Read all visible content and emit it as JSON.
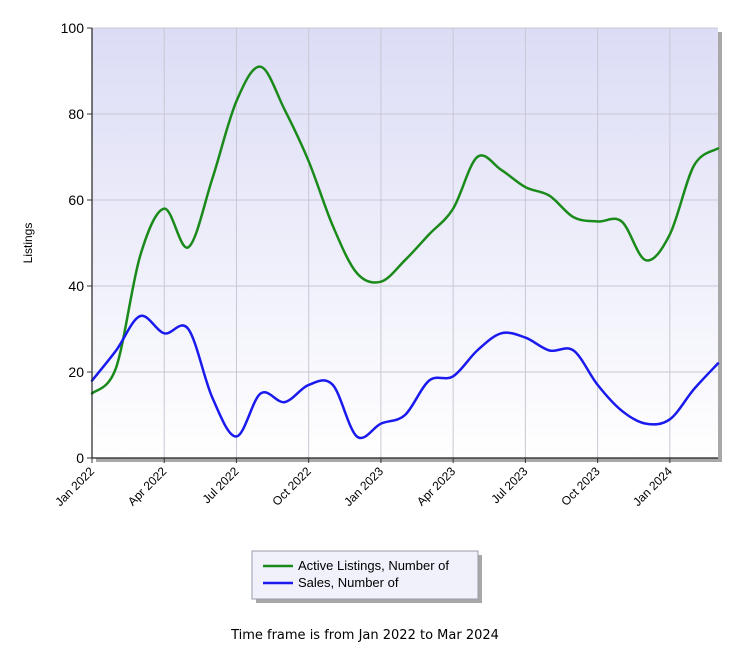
{
  "chart_data": {
    "type": "line",
    "title": "",
    "xlabel": "",
    "ylabel": "Listings",
    "ylim": [
      0,
      100
    ],
    "yticks": [
      0,
      20,
      40,
      60,
      80,
      100
    ],
    "xlim": [
      "2022-01",
      "2024-03"
    ],
    "xticks": [
      {
        "date": "2022-01",
        "label": "Jan 2022"
      },
      {
        "date": "2022-04",
        "label": "Apr 2022"
      },
      {
        "date": "2022-07",
        "label": "Jul 2022"
      },
      {
        "date": "2022-10",
        "label": "Oct 2022"
      },
      {
        "date": "2023-01",
        "label": "Jan 2023"
      },
      {
        "date": "2023-04",
        "label": "Apr 2023"
      },
      {
        "date": "2023-07",
        "label": "Jul 2023"
      },
      {
        "date": "2023-10",
        "label": "Oct 2023"
      },
      {
        "date": "2024-01",
        "label": "Jan 2024"
      }
    ],
    "x": [
      "2022-01",
      "2022-02",
      "2022-03",
      "2022-04",
      "2022-05",
      "2022-06",
      "2022-07",
      "2022-08",
      "2022-09",
      "2022-10",
      "2022-11",
      "2022-12",
      "2023-01",
      "2023-02",
      "2023-03",
      "2023-04",
      "2023-05",
      "2023-06",
      "2023-07",
      "2023-08",
      "2023-09",
      "2023-10",
      "2023-11",
      "2023-12",
      "2024-01",
      "2024-02",
      "2024-03"
    ],
    "series": [
      {
        "name": "Active Listings, Number of",
        "color": "#1a8a1a",
        "values": [
          15,
          21,
          47,
          58,
          49,
          65,
          83,
          91,
          81,
          69,
          54,
          43,
          41,
          46,
          52,
          58,
          70,
          67,
          63,
          61,
          56,
          55,
          55,
          46,
          52,
          68,
          72
        ]
      },
      {
        "name": "Sales, Number of",
        "color": "#1a1aee",
        "values": [
          18,
          25,
          33,
          29,
          30,
          14,
          5,
          15,
          13,
          17,
          17,
          5,
          8,
          10,
          18,
          19,
          25,
          29,
          28,
          25,
          25,
          17,
          11,
          8,
          9,
          16,
          22
        ]
      }
    ],
    "grid": true,
    "legend_position": "bottom-center"
  },
  "footer": {
    "text": "Time frame is from Jan 2022 to Mar 2024"
  }
}
